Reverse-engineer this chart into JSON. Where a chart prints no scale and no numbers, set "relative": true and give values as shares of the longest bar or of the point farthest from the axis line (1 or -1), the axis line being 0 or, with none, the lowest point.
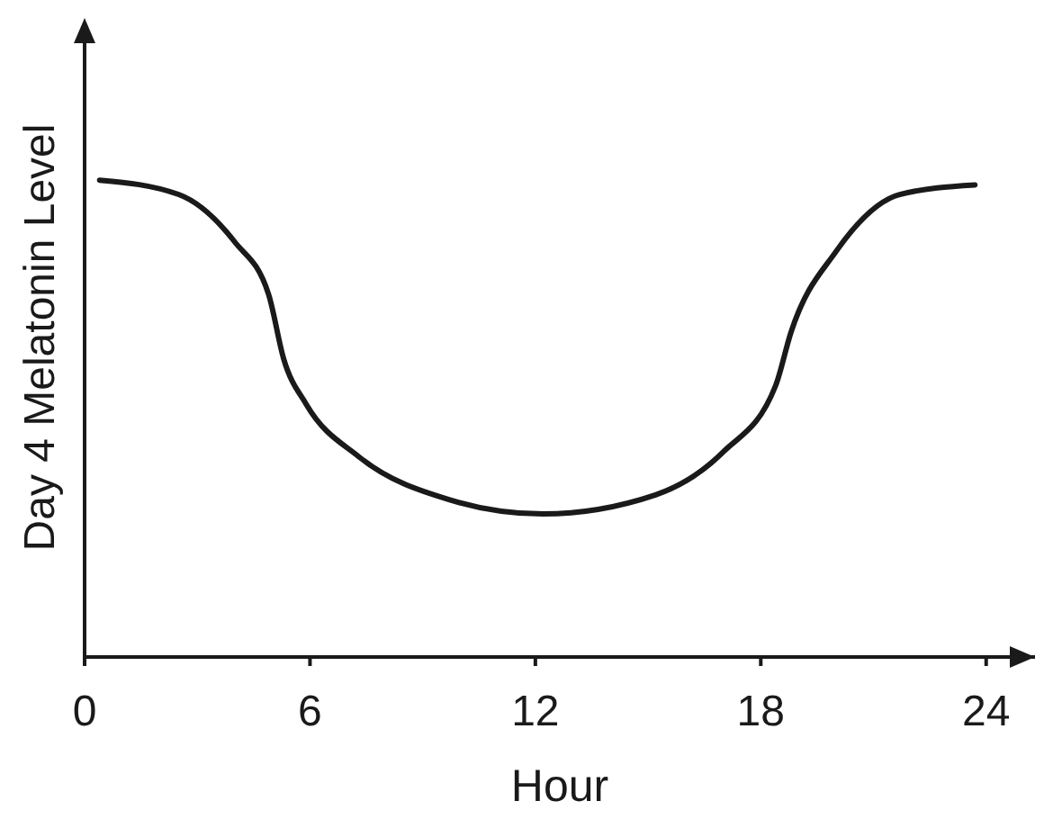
{
  "chart_data": {
    "type": "line",
    "relative": true,
    "xlabel": "Hour",
    "ylabel": "Day 4 Melatonin Level",
    "xlim": [
      0,
      25.3
    ],
    "xticks": [
      0,
      6,
      12,
      18,
      24
    ],
    "grid": false,
    "marker": "none",
    "line_style": "solid",
    "series": [
      {
        "color": "#1a1a1a",
        "x": [
          0.4,
          2.5,
          4,
          4.9,
          5.3,
          5.9,
          7.3,
          9.7,
          12.2,
          15.2,
          17,
          18.4,
          18.8,
          20,
          21.7,
          23.7
        ],
        "values": [
          1,
          0.97,
          0.87,
          0.76,
          0.625,
          0.53,
          0.42,
          0.33,
          0.3,
          0.34,
          0.43,
          0.57,
          0.68,
          0.85,
          0.97,
          0.99
        ]
      }
    ]
  }
}
